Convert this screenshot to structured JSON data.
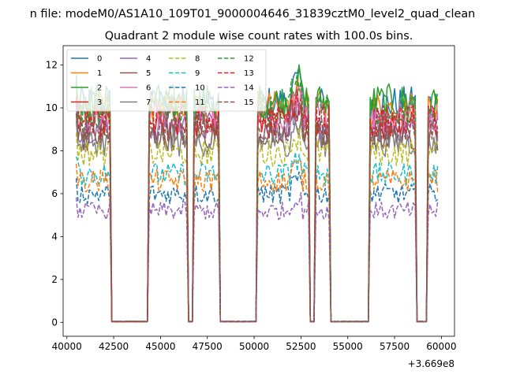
{
  "chart_data": {
    "type": "line",
    "suptitle": "n file: modeM0/AS1A10_109T01_9000004646_31839cztM0_level2_quad_clean",
    "title": "Quadrant 2 module wise count rates with 100.0s bins.",
    "xlabel": "",
    "ylabel": "",
    "x_offset_label": "+3.669e8",
    "xlim": [
      39800,
      60700
    ],
    "ylim": [
      -0.65,
      12.9
    ],
    "xticks": [
      40000,
      42500,
      45000,
      47500,
      50000,
      52500,
      55000,
      57500,
      60000
    ],
    "xtick_labels": [
      "40000",
      "42500",
      "45000",
      "47500",
      "50000",
      "52500",
      "55000",
      "57500",
      "60000"
    ],
    "yticks": [
      0,
      2,
      4,
      6,
      8,
      10,
      12
    ],
    "ytick_labels": [
      "0",
      "2",
      "4",
      "6",
      "8",
      "10",
      "12"
    ],
    "grid": false,
    "legend_location": "top-left",
    "legend_columns": 4,
    "x_step": 100,
    "active_intervals": [
      [
        40500,
        42300
      ],
      [
        44400,
        46400
      ],
      [
        46800,
        48100
      ],
      [
        50200,
        52900
      ],
      [
        53300,
        54000
      ],
      [
        56200,
        58600
      ],
      [
        59300,
        59800
      ]
    ],
    "series": [
      {
        "name": "0",
        "color": "#1f77b4",
        "dash": false,
        "level": 10.2
      },
      {
        "name": "1",
        "color": "#ff7f0e",
        "dash": false,
        "level": 10.0
      },
      {
        "name": "2",
        "color": "#2ca02c",
        "dash": false,
        "level": 10.3
      },
      {
        "name": "3",
        "color": "#d62728",
        "dash": false,
        "level": 9.3
      },
      {
        "name": "4",
        "color": "#9467bd",
        "dash": false,
        "level": 9.1
      },
      {
        "name": "5",
        "color": "#8c564b",
        "dash": false,
        "level": 8.7
      },
      {
        "name": "6",
        "color": "#e377c2",
        "dash": false,
        "level": 9.6
      },
      {
        "name": "7",
        "color": "#7f7f7f",
        "dash": false,
        "level": 8.4
      },
      {
        "name": "8",
        "color": "#bcbd22",
        "dash": true,
        "level": 7.9
      },
      {
        "name": "9",
        "color": "#17becf",
        "dash": true,
        "level": 6.9
      },
      {
        "name": "10",
        "color": "#1f77b4",
        "dash": true,
        "level": 6.0
      },
      {
        "name": "11",
        "color": "#ff7f0e",
        "dash": true,
        "level": 6.6
      },
      {
        "name": "12",
        "color": "#2ca02c",
        "dash": true,
        "level": 9.9
      },
      {
        "name": "13",
        "color": "#d62728",
        "dash": true,
        "level": 9.4
      },
      {
        "name": "14",
        "color": "#9467bd",
        "dash": true,
        "level": 5.2
      },
      {
        "name": "15",
        "color": "#8c564b",
        "dash": true,
        "level": 9.0
      }
    ]
  }
}
